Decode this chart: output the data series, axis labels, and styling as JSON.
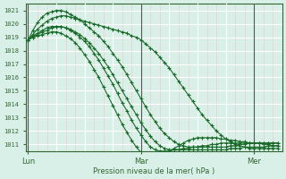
{
  "bg_color": "#d8f0e8",
  "grid_color_major": "#ffffff",
  "grid_color_minor_v": "#f0c8c8",
  "line_color": "#1a6b2a",
  "axis_color": "#336633",
  "text_color": "#336633",
  "xlabel": "Pression niveau de la mer( hPa )",
  "xtick_labels": [
    "Lun",
    "Mar",
    "Mer"
  ],
  "xtick_positions": [
    0,
    24,
    48
  ],
  "vline_positions": [
    0,
    24,
    48
  ],
  "ylim": [
    1010.5,
    1021.5
  ],
  "ytick_start": 1011,
  "ytick_end": 1021,
  "xlim_min": -0.5,
  "xlim_max": 54,
  "series": [
    [
      1018.8,
      1019.2,
      1019.6,
      1019.9,
      1020.2,
      1020.4,
      1020.5,
      1020.6,
      1020.6,
      1020.5,
      1020.4,
      1020.3,
      1020.2,
      1020.1,
      1020.0,
      1019.9,
      1019.8,
      1019.7,
      1019.6,
      1019.5,
      1019.4,
      1019.3,
      1019.1,
      1019.0,
      1018.8,
      1018.5,
      1018.2,
      1017.9,
      1017.5,
      1017.1,
      1016.7,
      1016.2,
      1015.7,
      1015.2,
      1014.7,
      1014.2,
      1013.7,
      1013.2,
      1012.8,
      1012.4,
      1012.0,
      1011.7,
      1011.4,
      1011.2,
      1011.0,
      1010.9,
      1010.8,
      1010.7,
      1010.7,
      1010.7,
      1010.7,
      1010.7,
      1010.7,
      1010.7
    ],
    [
      1018.8,
      1019.5,
      1020.1,
      1020.5,
      1020.8,
      1020.9,
      1021.0,
      1021.0,
      1020.9,
      1020.7,
      1020.5,
      1020.3,
      1020.0,
      1019.7,
      1019.4,
      1019.1,
      1018.7,
      1018.3,
      1017.8,
      1017.3,
      1016.8,
      1016.2,
      1015.6,
      1015.0,
      1014.4,
      1013.8,
      1013.2,
      1012.7,
      1012.2,
      1011.8,
      1011.5,
      1011.2,
      1011.0,
      1010.9,
      1010.8,
      1010.8,
      1010.8,
      1010.8,
      1010.8,
      1010.8,
      1010.8,
      1010.8,
      1010.8,
      1010.9,
      1010.9,
      1011.0,
      1011.0,
      1011.1,
      1011.1,
      1011.1,
      1011.1,
      1011.1,
      1011.1,
      1011.1
    ],
    [
      1018.8,
      1019.0,
      1019.2,
      1019.4,
      1019.5,
      1019.7,
      1019.8,
      1019.8,
      1019.7,
      1019.6,
      1019.4,
      1019.2,
      1018.9,
      1018.6,
      1018.2,
      1017.8,
      1017.3,
      1016.8,
      1016.2,
      1015.6,
      1015.0,
      1014.4,
      1013.8,
      1013.2,
      1012.6,
      1012.1,
      1011.6,
      1011.2,
      1010.9,
      1010.7,
      1010.6,
      1010.6,
      1010.6,
      1010.6,
      1010.6,
      1010.6,
      1010.6,
      1010.6,
      1010.6,
      1010.6,
      1010.6,
      1010.6,
      1010.6,
      1010.7,
      1010.7,
      1010.7,
      1010.8,
      1010.8,
      1010.8,
      1010.8,
      1010.8,
      1010.9,
      1010.9,
      1010.9
    ],
    [
      1018.8,
      1019.1,
      1019.3,
      1019.5,
      1019.7,
      1019.8,
      1019.8,
      1019.8,
      1019.7,
      1019.5,
      1019.3,
      1019.0,
      1018.7,
      1018.3,
      1017.8,
      1017.3,
      1016.7,
      1016.1,
      1015.5,
      1014.8,
      1014.1,
      1013.5,
      1012.8,
      1012.2,
      1011.7,
      1011.2,
      1010.8,
      1010.6,
      1010.5,
      1010.5,
      1010.5,
      1010.6,
      1010.6,
      1010.7,
      1010.7,
      1010.8,
      1010.8,
      1010.9,
      1010.9,
      1011.0,
      1011.0,
      1011.1,
      1011.1,
      1011.1,
      1011.1,
      1011.1,
      1011.1,
      1011.1,
      1011.1,
      1011.1,
      1011.1,
      1011.1,
      1011.1,
      1011.1
    ],
    [
      1018.8,
      1019.0,
      1019.1,
      1019.2,
      1019.3,
      1019.4,
      1019.4,
      1019.3,
      1019.1,
      1018.9,
      1018.6,
      1018.2,
      1017.7,
      1017.2,
      1016.6,
      1016.0,
      1015.3,
      1014.6,
      1013.9,
      1013.2,
      1012.5,
      1011.9,
      1011.3,
      1010.8,
      1010.4,
      1010.2,
      1010.1,
      1010.1,
      1010.2,
      1010.3,
      1010.5,
      1010.7,
      1010.9,
      1011.1,
      1011.3,
      1011.4,
      1011.5,
      1011.5,
      1011.5,
      1011.5,
      1011.5,
      1011.4,
      1011.4,
      1011.3,
      1011.3,
      1011.2,
      1011.2,
      1011.1,
      1011.1,
      1011.1,
      1011.0,
      1011.0,
      1010.9,
      1010.9
    ]
  ]
}
